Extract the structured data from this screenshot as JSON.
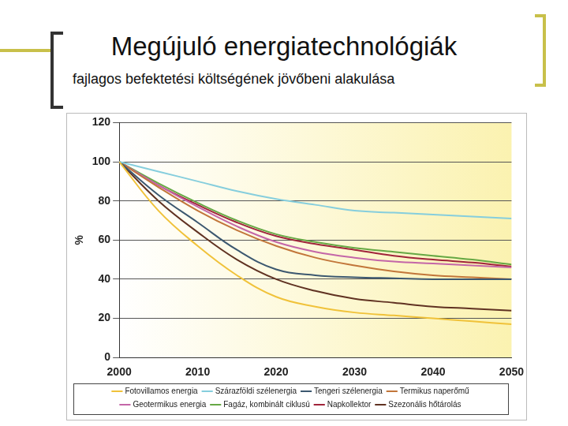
{
  "chart_data": {
    "type": "line",
    "title": "Megújuló energiatechnológiák",
    "subtitle": "fajlagos befektetési költségének jövőbeni alakulása",
    "y_label": "%",
    "x": [
      2000,
      2005,
      2010,
      2015,
      2020,
      2025,
      2030,
      2035,
      2040,
      2045,
      2050
    ],
    "xlim": [
      2000,
      2050
    ],
    "xticks": [
      2000,
      2010,
      2020,
      2030,
      2040,
      2050
    ],
    "ylim": [
      0,
      120
    ],
    "yticks": [
      0,
      20,
      40,
      60,
      80,
      100,
      120
    ],
    "grid": true,
    "legend": "bottom",
    "marker": "none",
    "line_style": "solid",
    "series": [
      {
        "name": "Fotovillamos energia",
        "color": "#f0c23a",
        "values": [
          100,
          75,
          57,
          42,
          31,
          26,
          23,
          21.5,
          20,
          18.5,
          17
        ]
      },
      {
        "name": "Szárazföldi szélenergia",
        "color": "#86cedd",
        "values": [
          100,
          95,
          90,
          85,
          81,
          78,
          75,
          74,
          73,
          72,
          71
        ]
      },
      {
        "name": "Tengeri szélenergia",
        "color": "#3c5870",
        "values": [
          100,
          83,
          69,
          55,
          45,
          42,
          41,
          40.5,
          40,
          40,
          40
        ]
      },
      {
        "name": "Termikus naperőmű",
        "color": "#c2763a",
        "values": [
          100,
          87,
          75,
          65,
          57,
          51,
          47,
          44,
          42,
          41,
          40
        ]
      },
      {
        "name": "Geotermikus energia",
        "color": "#c466a8",
        "values": [
          100,
          88,
          77,
          67,
          59,
          54,
          51,
          49,
          48,
          47,
          46
        ]
      },
      {
        "name": "Fagáz, kombinált ciklusú",
        "color": "#66a844",
        "values": [
          100,
          89,
          79,
          70,
          63,
          59,
          56,
          54,
          52,
          50,
          47.5
        ]
      },
      {
        "name": "Napkollektor",
        "color": "#a0243a",
        "values": [
          100,
          88,
          78,
          69,
          62,
          58,
          55,
          52,
          50,
          48.5,
          46.5
        ]
      },
      {
        "name": "Szezonális hőtárolás",
        "color": "#603222",
        "values": [
          100,
          80,
          64,
          50,
          40,
          34,
          30,
          28,
          26,
          25,
          24
        ]
      }
    ]
  }
}
